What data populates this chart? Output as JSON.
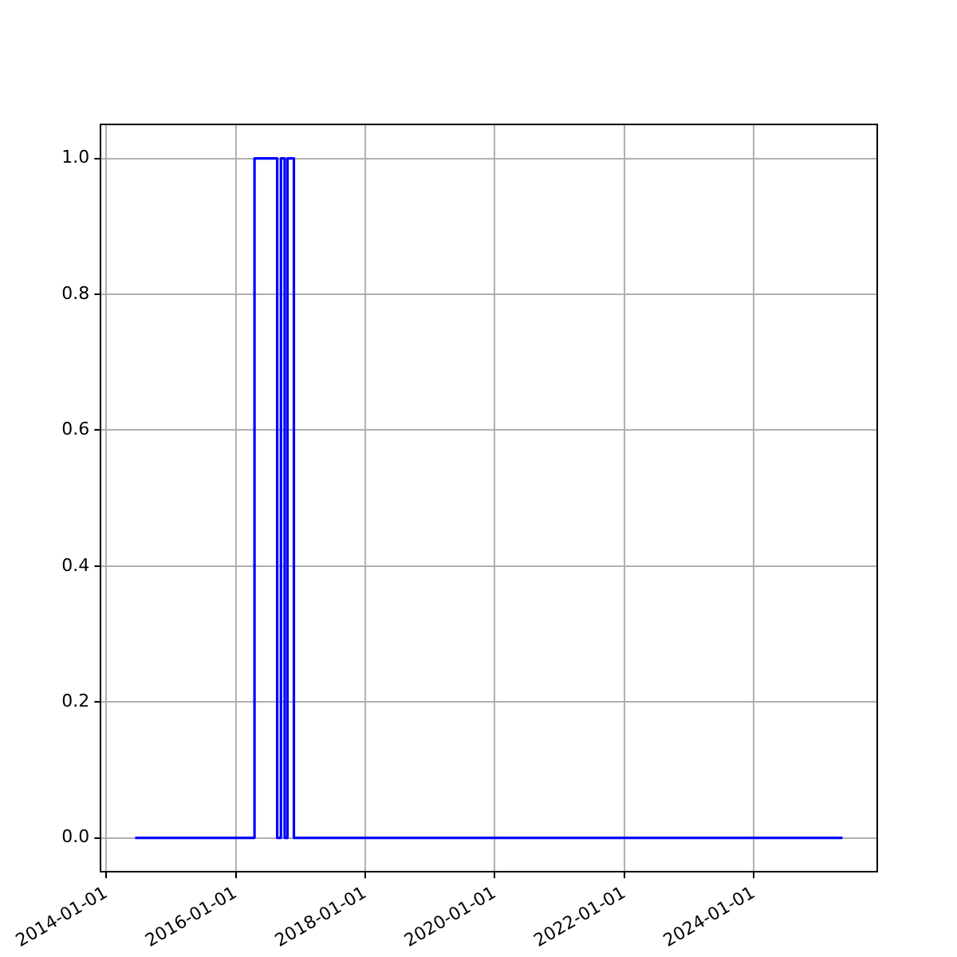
{
  "chart_data": {
    "type": "step",
    "x": [
      "2014-06-13",
      "2016-04-16",
      "2016-08-22",
      "2016-09-12",
      "2016-10-03",
      "2016-10-19",
      "2016-11-24",
      "2025-05-15"
    ],
    "series": [
      {
        "color": "#0000ff",
        "values": [
          0,
          1,
          0,
          1,
          0,
          1,
          0,
          0
        ]
      }
    ],
    "xlim": [
      "2013-12-01",
      "2025-11-27"
    ],
    "xticks": [
      "2014-01-01",
      "2016-01-01",
      "2018-01-01",
      "2020-01-01",
      "2022-01-01",
      "2024-01-01"
    ],
    "ylim": [
      -0.05,
      1.05
    ],
    "yticks": [
      {
        "value": 0,
        "label": "0.0"
      },
      {
        "value": 0.2,
        "label": "0.2"
      },
      {
        "value": 0.4,
        "label": "0.4"
      },
      {
        "value": 0.6,
        "label": "0.6"
      },
      {
        "value": 0.8,
        "label": "0.8"
      },
      {
        "value": 1,
        "label": "1.0"
      }
    ],
    "grid": true,
    "legend": false
  }
}
